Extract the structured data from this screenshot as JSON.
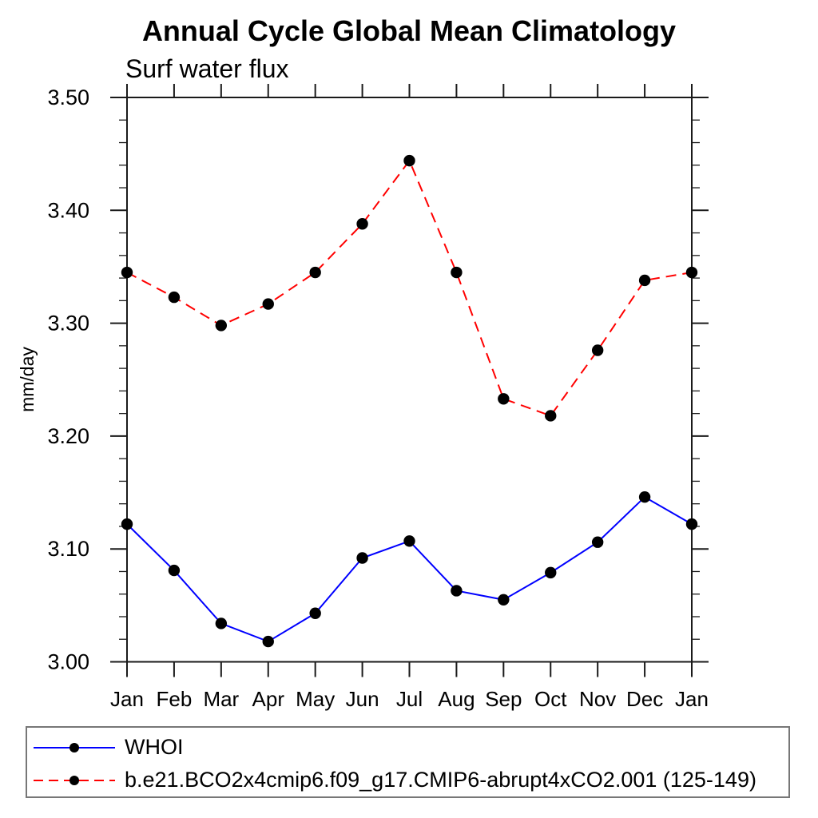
{
  "page": {
    "background_color": "#ffffff",
    "axis_color": "#1a1a1a"
  },
  "chart_data": {
    "type": "line",
    "title": "Annual Cycle Global Mean Climatology",
    "subtitle": "Surf water flux",
    "ylabel": "mm/day",
    "xlabel": "",
    "categories": [
      "Jan",
      "Feb",
      "Mar",
      "Apr",
      "May",
      "Jun",
      "Jul",
      "Aug",
      "Sep",
      "Oct",
      "Nov",
      "Dec",
      "Jan"
    ],
    "series": [
      {
        "name": "WHOI",
        "color": "#0000ff",
        "line_style": "solid",
        "marker": "filled-circle",
        "marker_color": "#000000",
        "values": [
          3.122,
          3.081,
          3.034,
          3.018,
          3.043,
          3.092,
          3.107,
          3.063,
          3.055,
          3.079,
          3.106,
          3.146,
          3.122
        ]
      },
      {
        "name": "b.e21.BCO2x4cmip6.f09_g17.CMIP6-abrupt4xCO2.001 (125-149)",
        "color": "#ff0000",
        "line_style": "dashed",
        "marker": "filled-circle",
        "marker_color": "#000000",
        "values": [
          3.345,
          3.323,
          3.298,
          3.317,
          3.345,
          3.388,
          3.444,
          3.345,
          3.233,
          3.218,
          3.276,
          3.338,
          3.345
        ]
      }
    ],
    "ylim": [
      3.0,
      3.5
    ],
    "ytick_major_step": 0.1,
    "ytick_minor_step": 0.02,
    "ytick_labels": [
      "3.00",
      "3.10",
      "3.20",
      "3.30",
      "3.40",
      "3.50"
    ],
    "grid": false,
    "legend_position": "bottom-left-box"
  }
}
